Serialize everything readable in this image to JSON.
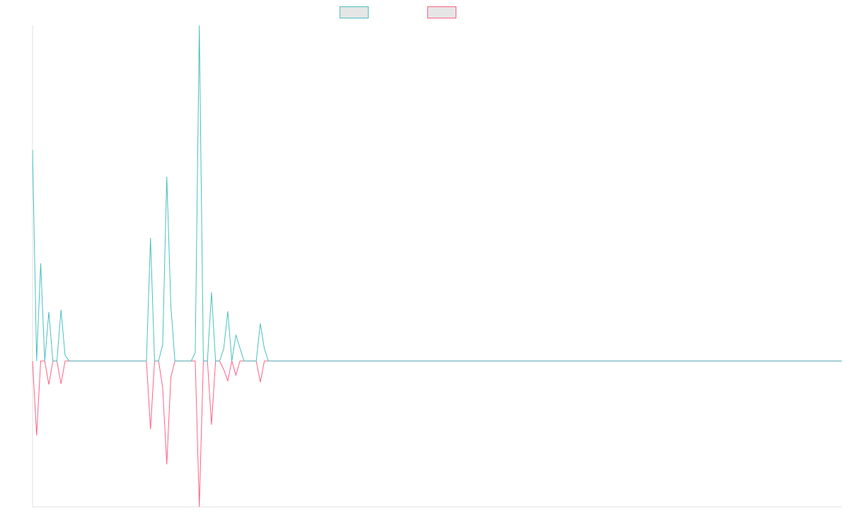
{
  "chart_data": {
    "type": "line",
    "ylim": [
      -43.5,
      100
    ],
    "legend": "top",
    "legend_fill": "#e6e6e6",
    "series": [
      {
        "color": "#4bc0c0",
        "values": [
          62.9,
          0,
          29.1,
          0,
          14.6,
          0,
          0,
          15.2,
          1.7,
          0,
          0,
          0,
          0,
          0,
          0,
          0,
          0,
          0,
          0,
          0,
          0,
          0,
          0,
          0,
          0,
          0,
          0,
          0,
          0,
          36.7,
          0,
          0,
          4.9,
          54.9,
          16.7,
          0,
          0,
          0,
          0,
          0,
          2.5,
          100,
          0,
          0,
          20.5,
          0,
          0,
          3.6,
          14.8,
          0,
          7.8,
          3.8,
          0,
          0,
          0,
          0,
          11.2,
          3.6,
          0,
          0,
          0,
          0,
          0,
          0,
          0,
          0,
          0,
          0,
          0,
          0,
          0,
          0,
          0,
          0,
          0,
          0,
          0,
          0,
          0,
          0,
          0,
          0,
          0,
          0,
          0,
          0,
          0,
          0,
          0,
          0,
          0,
          0,
          0,
          0,
          0,
          0,
          0,
          0,
          0,
          0,
          0,
          0,
          0,
          0,
          0,
          0,
          0,
          0,
          0,
          0,
          0,
          0,
          0,
          0,
          0,
          0,
          0,
          0,
          0,
          0,
          0,
          0,
          0,
          0,
          0,
          0,
          0,
          0,
          0,
          0,
          0,
          0,
          0,
          0,
          0,
          0,
          0,
          0,
          0,
          0,
          0,
          0,
          0,
          0,
          0,
          0,
          0,
          0,
          0,
          0,
          0,
          0,
          0,
          0,
          0,
          0,
          0,
          0,
          0,
          0,
          0,
          0,
          0,
          0,
          0,
          0,
          0,
          0,
          0,
          0,
          0,
          0,
          0,
          0,
          0,
          0,
          0,
          0,
          0,
          0,
          0,
          0,
          0,
          0,
          0,
          0,
          0,
          0,
          0,
          0,
          0,
          0,
          0,
          0,
          0,
          0,
          0,
          0,
          0,
          0
        ]
      },
      {
        "color": "#ff6384",
        "values": [
          0,
          -22.2,
          0,
          0,
          -7,
          0,
          0,
          -6.8,
          0,
          0,
          0,
          0,
          0,
          0,
          0,
          0,
          0,
          0,
          0,
          0,
          0,
          0,
          0,
          0,
          0,
          0,
          0,
          0,
          0,
          -20.3,
          0,
          0,
          -8,
          -30.8,
          -4.9,
          0,
          0,
          0,
          0,
          0,
          0,
          -43.5,
          0,
          0,
          -19,
          0,
          0,
          -2.5,
          -5.9,
          0,
          -4.2,
          0,
          0,
          0,
          0,
          0,
          -6.3,
          0,
          0,
          0,
          0,
          0,
          0,
          0,
          0,
          0,
          0,
          0,
          0,
          0,
          0,
          0,
          0,
          0,
          0,
          0,
          0,
          0,
          0,
          0,
          0,
          0,
          0,
          0,
          0,
          0,
          0,
          0,
          0,
          0,
          0,
          0,
          0,
          0,
          0,
          0,
          0,
          0,
          0,
          0,
          0,
          0,
          0,
          0,
          0,
          0,
          0,
          0,
          0,
          0,
          0,
          0,
          0,
          0,
          0,
          0,
          0,
          0,
          0,
          0,
          0,
          0,
          0,
          0,
          0,
          0,
          0,
          0,
          0,
          0,
          0,
          0,
          0,
          0,
          0,
          0,
          0,
          0,
          0,
          0,
          0,
          0,
          0,
          0,
          0,
          0,
          0,
          0,
          0,
          0,
          0,
          0,
          0,
          0,
          0,
          0,
          0,
          0,
          0,
          0,
          0,
          0,
          0,
          0,
          0,
          0,
          0,
          0,
          0,
          0,
          0,
          0,
          0,
          0,
          0,
          0,
          0,
          0,
          0,
          0,
          0,
          0,
          0,
          0,
          0,
          0,
          0,
          0,
          0,
          0,
          0,
          0,
          0,
          0,
          0,
          0,
          0,
          0,
          0,
          0
        ]
      }
    ]
  }
}
